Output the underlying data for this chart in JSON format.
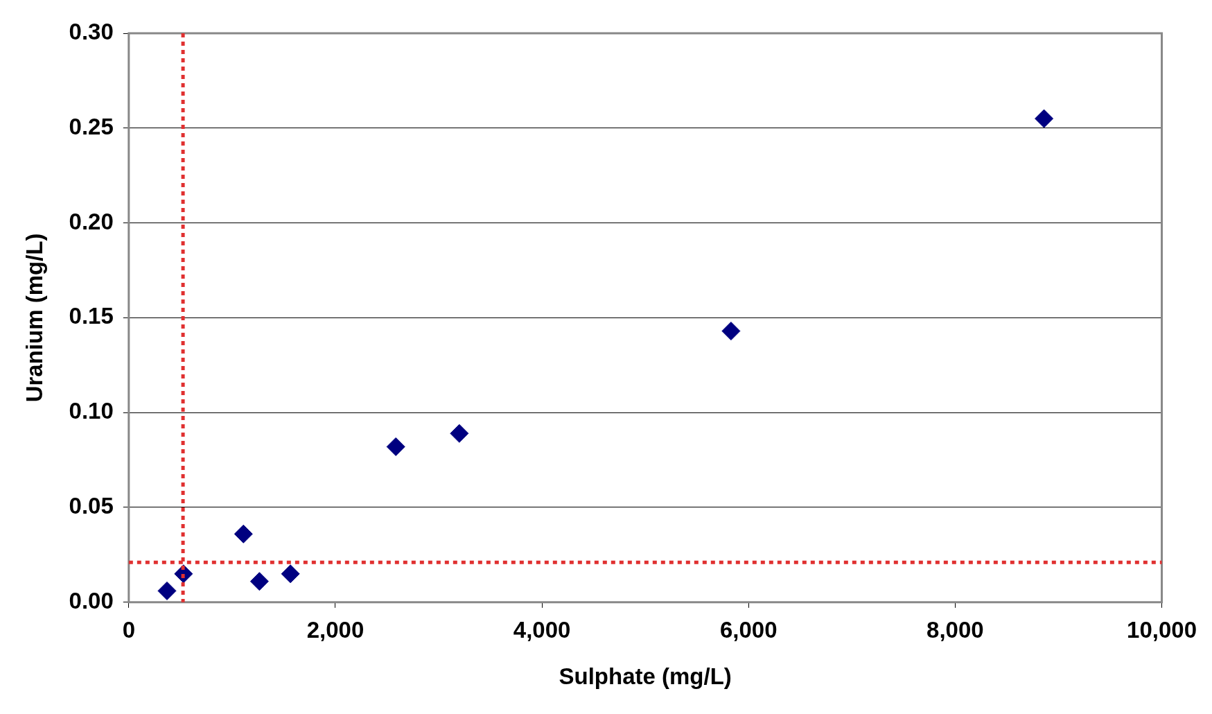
{
  "chart_data": {
    "type": "scatter",
    "xlabel": "Sulphate (mg/L)",
    "ylabel": "Uranium (mg/L)",
    "x": [
      370,
      530,
      1110,
      1265,
      1565,
      2585,
      3200,
      5830,
      8860
    ],
    "values": [
      0.006,
      0.015,
      0.036,
      0.011,
      0.015,
      0.082,
      0.089,
      0.143,
      0.255
    ],
    "color": "#000080",
    "marker": "diamond",
    "xlim": [
      0,
      10000
    ],
    "xticks": [
      {
        "value": 0,
        "label": "0"
      },
      {
        "value": 2000,
        "label": "2,000"
      },
      {
        "value": 4000,
        "label": "4,000"
      },
      {
        "value": 6000,
        "label": "6,000"
      },
      {
        "value": 8000,
        "label": "8,000"
      },
      {
        "value": 10000,
        "label": "10,000"
      }
    ],
    "ylim": [
      0,
      0.3
    ],
    "yticks": [
      {
        "value": 0,
        "label": "0.00"
      },
      {
        "value": 0.05,
        "label": "0.05"
      },
      {
        "value": 0.1,
        "label": "0.10"
      },
      {
        "value": 0.15,
        "label": "0.15"
      },
      {
        "value": 0.2,
        "label": "0.20"
      },
      {
        "value": 0.25,
        "label": "0.25"
      },
      {
        "value": 0.3,
        "label": "0.30"
      }
    ],
    "grid": "y",
    "legend": false,
    "ref_lines": [
      {
        "axis": "x",
        "value": 525,
        "color": "#e03030",
        "line_style": "dotted"
      },
      {
        "axis": "y",
        "value": 0.021,
        "color": "#e03030",
        "line_style": "dotted"
      }
    ]
  }
}
